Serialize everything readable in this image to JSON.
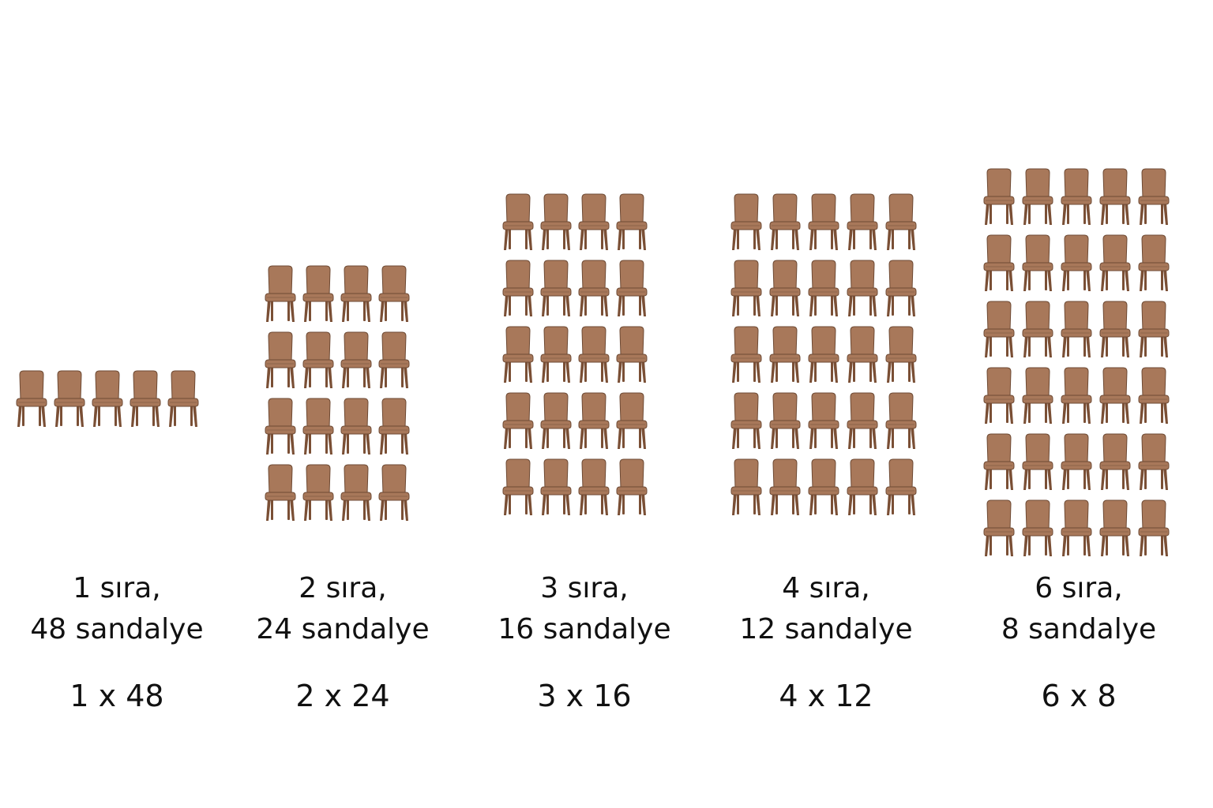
{
  "colors": {
    "chair_body": "#a8785a",
    "chair_outline": "#6e4a34",
    "chair_legs": "#7a4f35",
    "text": "#111111",
    "background": "#ffffff"
  },
  "groups": [
    {
      "caption_line1": "1 sıra,",
      "caption_line2": "48 sandalye",
      "formula": "1 x 48",
      "rows": 1,
      "cols": 5
    },
    {
      "caption_line1": "2 sıra,",
      "caption_line2": "24 sandalye",
      "formula": "2 x 24",
      "rows": 4,
      "cols": 4
    },
    {
      "caption_line1": "3 sıra,",
      "caption_line2": "16 sandalye",
      "formula": "3 x 16",
      "rows": 5,
      "cols": 4
    },
    {
      "caption_line1": "4 sıra,",
      "caption_line2": "12 sandalye",
      "formula": "4 x 12",
      "rows": 5,
      "cols": 5
    },
    {
      "caption_line1": "6 sıra,",
      "caption_line2": "8 sandalye",
      "formula": "6 x 8",
      "rows": 6,
      "cols": 5
    }
  ],
  "icon": "chair-icon"
}
